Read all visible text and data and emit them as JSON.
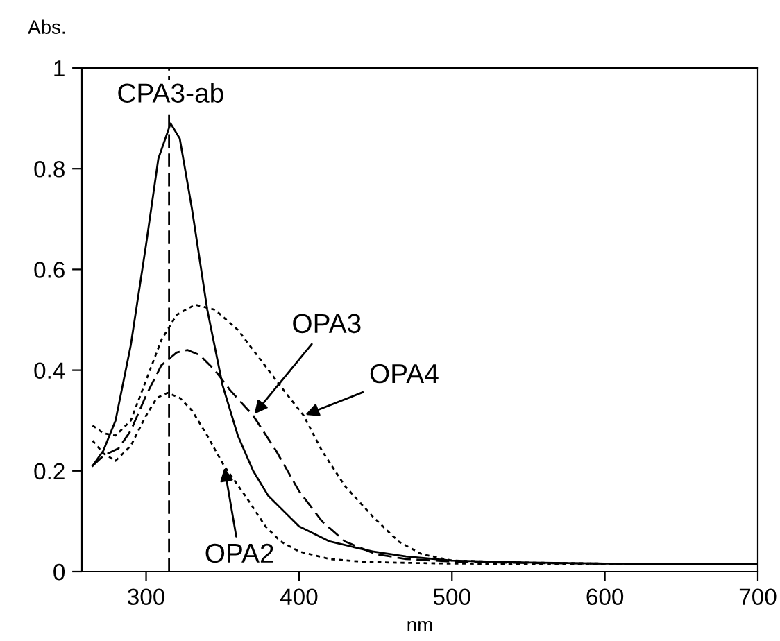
{
  "chart_data": {
    "type": "line",
    "xlabel": "nm",
    "ylabel": "Abs.",
    "xlim": [
      258,
      700
    ],
    "ylim": [
      0,
      1
    ],
    "xticks": [
      300,
      400,
      500,
      600,
      700
    ],
    "yticks": [
      0,
      0.2,
      0.4,
      0.6,
      0.8,
      1
    ],
    "grid": false,
    "legend": false,
    "marker": "none",
    "series": [
      {
        "color": "#000000",
        "line_style": "solid",
        "x": [
          265,
          272,
          280,
          290,
          300,
          308,
          316,
          322,
          330,
          340,
          350,
          360,
          370,
          380,
          390,
          400,
          420,
          448,
          470,
          500,
          550,
          600,
          650,
          700
        ],
        "values": [
          0.21,
          0.24,
          0.3,
          0.45,
          0.65,
          0.82,
          0.89,
          0.86,
          0.72,
          0.52,
          0.37,
          0.27,
          0.2,
          0.15,
          0.12,
          0.09,
          0.06,
          0.04,
          0.03,
          0.022,
          0.018,
          0.016,
          0.015,
          0.015
        ]
      },
      {
        "color": "#000000",
        "line_style": "dashed",
        "x": [
          265,
          272,
          282,
          290,
          300,
          310,
          320,
          327,
          335,
          345,
          355,
          370,
          385,
          400,
          415,
          430,
          450,
          470,
          500,
          550,
          600,
          700
        ],
        "values": [
          0.21,
          0.23,
          0.245,
          0.28,
          0.35,
          0.41,
          0.435,
          0.44,
          0.43,
          0.4,
          0.36,
          0.31,
          0.24,
          0.16,
          0.1,
          0.06,
          0.035,
          0.025,
          0.02,
          0.017,
          0.016,
          0.015
        ]
      },
      {
        "color": "#000000",
        "line_style": "dotted",
        "x": [
          265,
          272,
          280,
          290,
          300,
          310,
          320,
          332,
          345,
          360,
          375,
          390,
          403,
          415,
          430,
          448,
          465,
          480,
          500,
          550,
          600,
          700
        ],
        "values": [
          0.29,
          0.275,
          0.27,
          0.3,
          0.38,
          0.46,
          0.51,
          0.53,
          0.52,
          0.48,
          0.42,
          0.36,
          0.31,
          0.24,
          0.17,
          0.11,
          0.06,
          0.035,
          0.022,
          0.018,
          0.016,
          0.015
        ]
      },
      {
        "color": "#000000",
        "line_style": "dotted",
        "x": [
          265,
          272,
          280,
          290,
          300,
          307,
          314,
          322,
          330,
          340,
          351,
          365,
          378,
          388,
          400,
          420,
          440,
          460,
          480,
          500,
          600,
          700
        ],
        "values": [
          0.26,
          0.235,
          0.22,
          0.25,
          0.31,
          0.345,
          0.355,
          0.345,
          0.32,
          0.27,
          0.21,
          0.15,
          0.09,
          0.06,
          0.04,
          0.025,
          0.02,
          0.018,
          0.017,
          0.016,
          0.015,
          0.015
        ]
      }
    ],
    "ref_lines": [
      {
        "axis": "x",
        "value": 315,
        "label": null,
        "line_style": "dashed",
        "color": "#000000"
      }
    ],
    "annotations": [
      {
        "text": "CPA3-ab",
        "x": 316,
        "y": 0.89
      },
      {
        "text": "OPA3",
        "x": 370,
        "y": 0.31
      },
      {
        "text": "OPA4",
        "x": 403,
        "y": 0.31
      },
      {
        "text": "OPA2",
        "x": 351,
        "y": 0.21
      }
    ]
  }
}
